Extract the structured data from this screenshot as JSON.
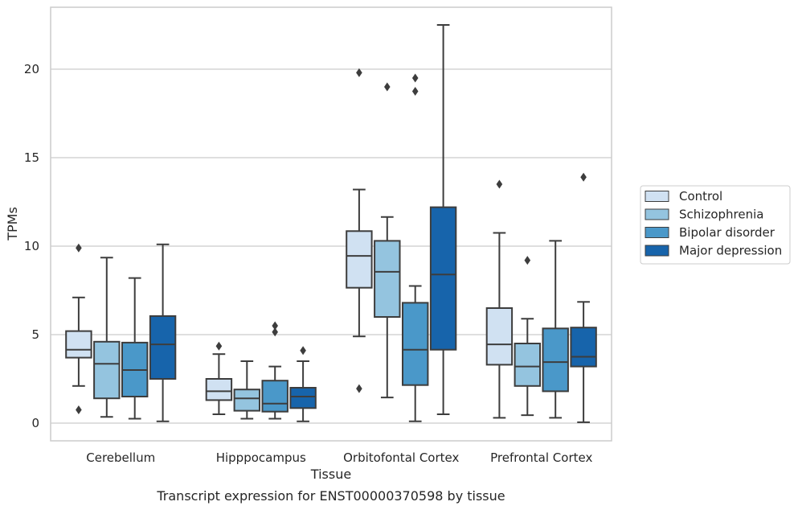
{
  "chart_data": {
    "type": "boxplot",
    "xlabel": "Tissue",
    "ylabel": "TPMs",
    "caption": "Transcript expression for ENST00000370598 by tissue",
    "ylim": [
      -1,
      23.5
    ],
    "yticks": [
      0,
      5,
      10,
      15,
      20
    ],
    "grid": "horizontal",
    "legend_position": "right",
    "categories": [
      "Cerebellum",
      "Hipppocampus",
      "Orbitofontal Cortex",
      "Prefrontal Cortex"
    ],
    "series": [
      {
        "name": "Control",
        "color": "#d0e1f2",
        "boxes": [
          {
            "whislo": 2.1,
            "q1": 3.7,
            "med": 4.15,
            "q3": 5.2,
            "whishi": 7.1,
            "fliers": [
              9.9,
              0.75
            ]
          },
          {
            "whislo": 0.5,
            "q1": 1.3,
            "med": 1.8,
            "q3": 2.5,
            "whishi": 3.9,
            "fliers": [
              4.35
            ]
          },
          {
            "whislo": 4.9,
            "q1": 7.65,
            "med": 9.45,
            "q3": 10.85,
            "whishi": 13.2,
            "fliers": [
              19.8,
              1.95
            ]
          },
          {
            "whislo": 0.3,
            "q1": 3.3,
            "med": 4.45,
            "q3": 6.5,
            "whishi": 10.75,
            "fliers": [
              13.5
            ]
          }
        ]
      },
      {
        "name": "Schizophrenia",
        "color": "#94c4df",
        "boxes": [
          {
            "whislo": 0.35,
            "q1": 1.4,
            "med": 3.35,
            "q3": 4.6,
            "whishi": 9.35,
            "fliers": []
          },
          {
            "whislo": 0.25,
            "q1": 0.7,
            "med": 1.4,
            "q3": 1.9,
            "whishi": 3.5,
            "fliers": []
          },
          {
            "whislo": 1.45,
            "q1": 6.0,
            "med": 8.55,
            "q3": 10.3,
            "whishi": 11.65,
            "fliers": [
              19.0
            ]
          },
          {
            "whislo": 0.45,
            "q1": 2.1,
            "med": 3.2,
            "q3": 4.5,
            "whishi": 5.9,
            "fliers": [
              9.2
            ]
          }
        ]
      },
      {
        "name": "Bipolar disorder",
        "color": "#4a98c9",
        "boxes": [
          {
            "whislo": 0.25,
            "q1": 1.5,
            "med": 3.0,
            "q3": 4.55,
            "whishi": 8.2,
            "fliers": []
          },
          {
            "whislo": 0.25,
            "q1": 0.65,
            "med": 1.1,
            "q3": 2.4,
            "whishi": 3.2,
            "fliers": [
              5.5,
              5.15
            ]
          },
          {
            "whislo": 0.1,
            "q1": 2.15,
            "med": 4.15,
            "q3": 6.8,
            "whishi": 7.75,
            "fliers": [
              19.5,
              18.75
            ]
          },
          {
            "whislo": 0.3,
            "q1": 1.8,
            "med": 3.45,
            "q3": 5.35,
            "whishi": 10.3,
            "fliers": []
          }
        ]
      },
      {
        "name": "Major depression",
        "color": "#1764ab",
        "boxes": [
          {
            "whislo": 0.1,
            "q1": 2.5,
            "med": 4.45,
            "q3": 6.05,
            "whishi": 10.1,
            "fliers": []
          },
          {
            "whislo": 0.1,
            "q1": 0.85,
            "med": 1.5,
            "q3": 2.0,
            "whishi": 3.5,
            "fliers": [
              4.1
            ]
          },
          {
            "whislo": 0.5,
            "q1": 4.15,
            "med": 8.4,
            "q3": 12.2,
            "whishi": 22.5,
            "fliers": []
          },
          {
            "whislo": 0.05,
            "q1": 3.2,
            "med": 3.75,
            "q3": 5.4,
            "whishi": 6.85,
            "fliers": [
              13.9
            ]
          }
        ]
      }
    ]
  }
}
